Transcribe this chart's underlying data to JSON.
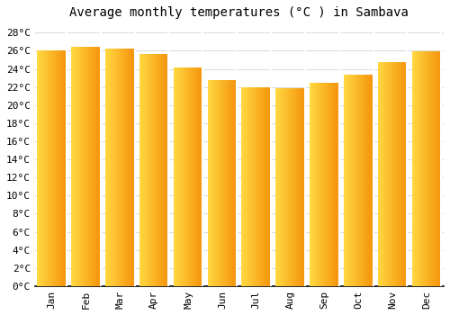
{
  "title": "Average monthly temperatures (°C ) in Sambava",
  "months": [
    "Jan",
    "Feb",
    "Mar",
    "Apr",
    "May",
    "Jun",
    "Jul",
    "Aug",
    "Sep",
    "Oct",
    "Nov",
    "Dec"
  ],
  "values": [
    26.0,
    26.4,
    26.2,
    25.6,
    24.2,
    22.8,
    22.0,
    21.9,
    22.5,
    23.4,
    24.8,
    25.9
  ],
  "bar_color_left": "#FFD840",
  "bar_color_right": "#F5920A",
  "ylim": [
    0,
    29
  ],
  "ytick_values": [
    0,
    2,
    4,
    6,
    8,
    10,
    12,
    14,
    16,
    18,
    20,
    22,
    24,
    26,
    28
  ],
  "ytick_labels": [
    "0°C",
    "2°C",
    "4°C",
    "6°C",
    "8°C",
    "10°C",
    "12°C",
    "14°C",
    "16°C",
    "18°C",
    "20°C",
    "22°C",
    "24°C",
    "26°C",
    "28°C"
  ],
  "background_color": "#FFFFFF",
  "plot_bg_color": "#FFFFFF",
  "grid_color": "#DDDDDD",
  "title_fontsize": 10,
  "tick_fontsize": 8,
  "font_family": "monospace",
  "bar_width": 0.85
}
